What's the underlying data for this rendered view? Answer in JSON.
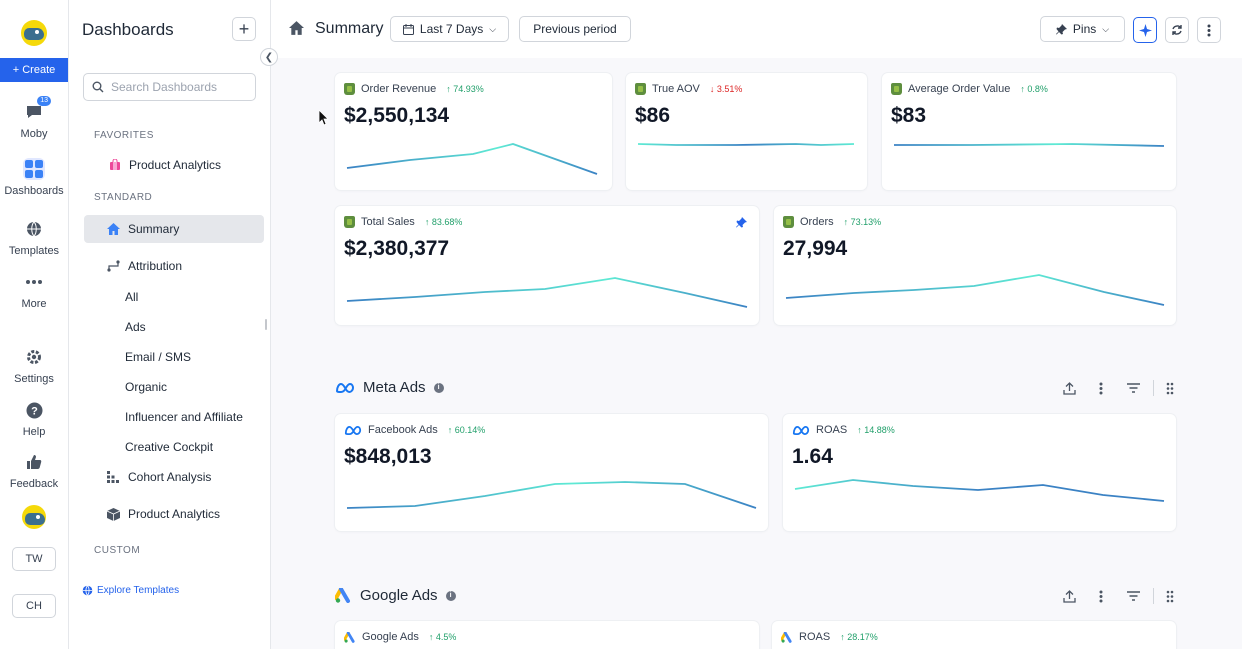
{
  "rail": {
    "create_label": "+ Create",
    "items": [
      {
        "label": "Moby",
        "badge": "13"
      },
      {
        "label": "Dashboards"
      },
      {
        "label": "Templates"
      },
      {
        "label": "More"
      },
      {
        "label": "Settings"
      },
      {
        "label": "Help"
      },
      {
        "label": "Feedback"
      }
    ],
    "workspace_tw": "TW",
    "workspace_ch": "CH"
  },
  "sidebar": {
    "title": "Dashboards",
    "search_placeholder": "Search Dashboards",
    "favorites_label": "FAVORITES",
    "favorites": [
      "Product Analytics"
    ],
    "standard_label": "STANDARD",
    "items": {
      "summary": "Summary",
      "attribution": "Attribution",
      "all": "All",
      "ads": "Ads",
      "email_sms": "Email / SMS",
      "organic": "Organic",
      "influencer": "Influencer and Affiliate",
      "creative": "Creative Cockpit",
      "cohort": "Cohort Analysis",
      "product": "Product Analytics"
    },
    "custom_label": "CUSTOM",
    "explore_label": "Explore Templates"
  },
  "topbar": {
    "title": "Summary",
    "date_range": "Last 7 Days",
    "compare": "Previous period",
    "pins_label": "Pins"
  },
  "cards": {
    "order_revenue": {
      "title": "Order Revenue",
      "change": "74.93%",
      "direction": "up",
      "value": "$2,550,134"
    },
    "true_aov": {
      "title": "True AOV",
      "change": "3.51%",
      "direction": "down",
      "value": "$86"
    },
    "avg_order_value": {
      "title": "Average Order Value",
      "change": "0.8%",
      "direction": "up",
      "value": "$83"
    },
    "total_sales": {
      "title": "Total Sales",
      "change": "83.68%",
      "direction": "up",
      "value": "$2,380,377"
    },
    "orders": {
      "title": "Orders",
      "change": "73.13%",
      "direction": "up",
      "value": "27,994"
    },
    "facebook_ads": {
      "title": "Facebook Ads",
      "change": "60.14%",
      "direction": "up",
      "value": "$848,013"
    },
    "meta_roas": {
      "title": "ROAS",
      "change": "14.88%",
      "direction": "up",
      "value": "1.64"
    },
    "google_ads": {
      "title": "Google Ads",
      "change": "4.5%",
      "direction": "up"
    },
    "google_roas": {
      "title": "ROAS",
      "change": "28.17%",
      "direction": "up"
    }
  },
  "sections": {
    "meta": "Meta Ads",
    "google": "Google Ads"
  },
  "colors": {
    "accent": "#2563eb",
    "positive": "#22a06b",
    "negative": "#dc2626",
    "spark_start": "#3b82c4",
    "spark_end": "#5eead4"
  }
}
